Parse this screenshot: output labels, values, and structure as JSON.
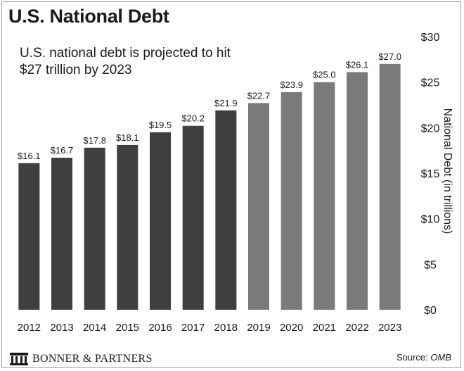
{
  "header": {
    "title": "U.S. National Debt",
    "subtitle": "U.S. national debt is projected to hit $27 trillion by 2023"
  },
  "footer": {
    "brand": "BONNER & PARTNERS",
    "source_label": "Source:",
    "source_value": "OMB",
    "brand_icon": "building-columns-icon"
  },
  "chart_data": {
    "type": "bar",
    "categories": [
      "2012",
      "2013",
      "2014",
      "2015",
      "2016",
      "2017",
      "2018",
      "2019",
      "2020",
      "2021",
      "2022",
      "2023"
    ],
    "values": [
      16.1,
      16.7,
      17.8,
      18.1,
      19.5,
      20.2,
      21.9,
      22.7,
      23.9,
      25.0,
      26.1,
      27.0
    ],
    "value_labels": [
      "$16.1",
      "$16.7",
      "$17.8",
      "$18.1",
      "$19.5",
      "$20.2",
      "$21.9",
      "$22.7",
      "$23.9",
      "$25.0",
      "$26.1",
      "$27.0"
    ],
    "ylabel": "National Debt (in trillions)",
    "ylim": [
      0,
      30
    ],
    "yticks": [
      0,
      5,
      10,
      15,
      20,
      25,
      30
    ],
    "ytick_labels": [
      "$0",
      "$5",
      "$10",
      "$15",
      "$20",
      "$25",
      "$30"
    ],
    "y_axis_side": "right",
    "grid": false,
    "colors": {
      "actual": "#3f3f3f",
      "projected": "#7a7a7a"
    },
    "projected_from": "2019"
  }
}
